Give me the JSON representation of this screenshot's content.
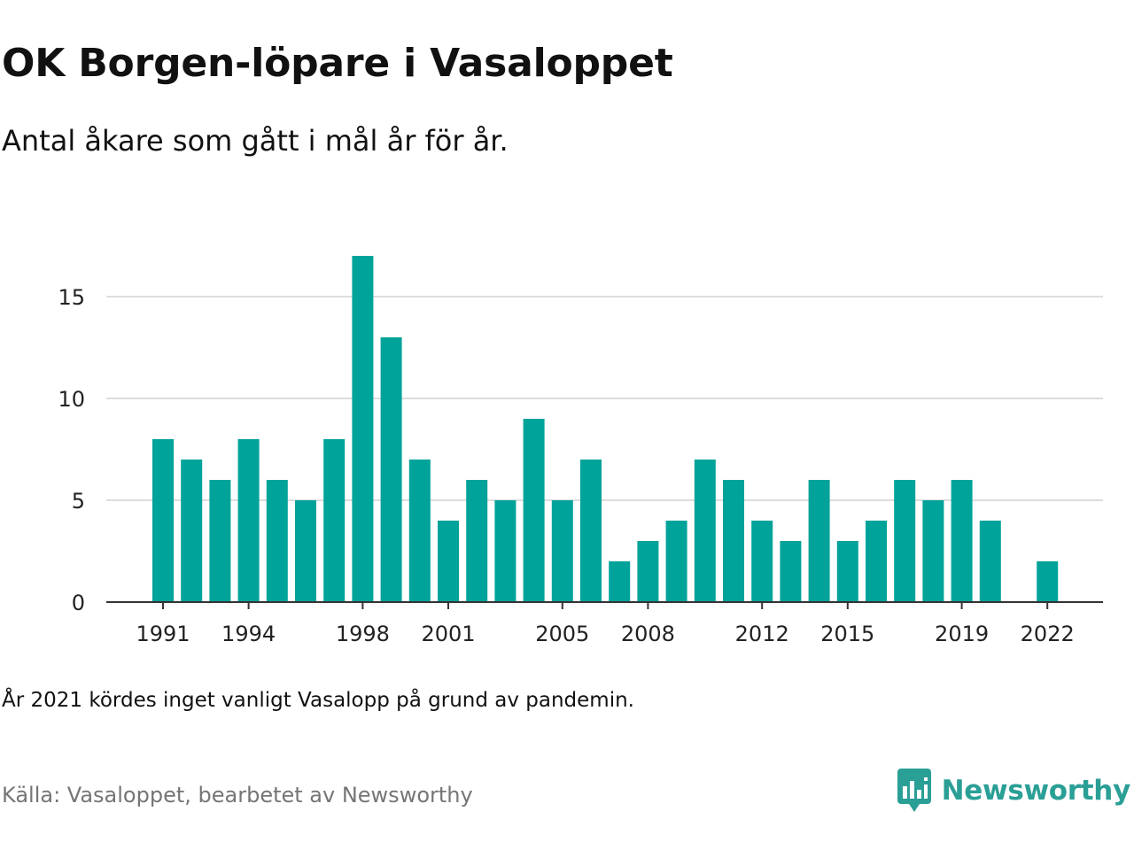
{
  "header": {
    "title": "OK Borgen-löpare i Vasaloppet",
    "subtitle": "Antal åkare som gått i mål år för år."
  },
  "footer": {
    "note": "År 2021 kördes inget vanligt Vasalopp på grund av pandemin.",
    "source": "Källa: Vasaloppet, bearbetet av Newsworthy",
    "brand": "Newsworthy"
  },
  "colors": {
    "bar": "#00a39a",
    "grid": "#dddddd",
    "axis": "#333333",
    "brand": "#2a9f96"
  },
  "chart_data": {
    "type": "bar",
    "title": "OK Borgen-löpare i Vasaloppet",
    "subtitle": "Antal åkare som gått i mål år för år.",
    "xlabel": "",
    "ylabel": "",
    "grid": "horizontal",
    "ylim": [
      0,
      18
    ],
    "yticks": [
      0,
      5,
      10,
      15
    ],
    "xticks": [
      1991,
      1994,
      1998,
      2001,
      2005,
      2008,
      2012,
      2015,
      2019,
      2022
    ],
    "categories": [
      1991,
      1992,
      1993,
      1994,
      1995,
      1996,
      1997,
      1998,
      1999,
      2000,
      2001,
      2002,
      2003,
      2004,
      2005,
      2006,
      2007,
      2008,
      2009,
      2010,
      2011,
      2012,
      2013,
      2014,
      2015,
      2016,
      2017,
      2018,
      2019,
      2020,
      2021,
      2022
    ],
    "values": [
      8,
      7,
      6,
      8,
      6,
      5,
      8,
      17,
      13,
      7,
      4,
      6,
      5,
      9,
      5,
      7,
      2,
      3,
      4,
      7,
      6,
      4,
      3,
      6,
      3,
      4,
      6,
      5,
      6,
      4,
      null,
      2
    ]
  }
}
